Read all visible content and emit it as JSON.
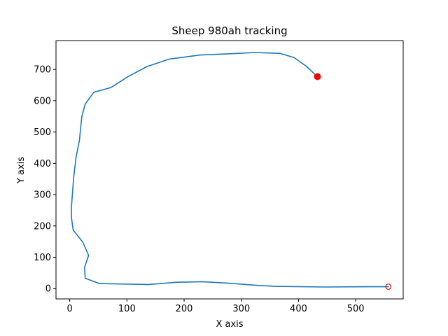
{
  "chart_data": {
    "type": "line",
    "title": "Sheep 980ah tracking",
    "xlabel": "X axis",
    "ylabel": "Y axis",
    "xlim": [
      -24,
      583
    ],
    "ylim": [
      -33,
      792
    ],
    "xticks": [
      0,
      100,
      200,
      300,
      400,
      500
    ],
    "yticks": [
      0,
      100,
      200,
      300,
      400,
      500,
      600,
      700
    ],
    "grid": false,
    "legend": "none",
    "colors": {
      "line": "#1f77b4",
      "end_marker": "#ff0000",
      "start_marker": "#d62728"
    },
    "series": [
      {
        "x": [
          557,
          530,
          445,
          360,
          330,
          280,
          232,
          185,
          138,
          52,
          27,
          26,
          33,
          23,
          6,
          3,
          3,
          5,
          7,
          11,
          17,
          21,
          27,
          42,
          72,
          102,
          135,
          174,
          228,
          280,
          325,
          368,
          392,
          413,
          433
        ],
        "y": [
          6,
          6,
          5,
          7,
          10,
          17,
          22,
          20,
          13,
          16,
          33,
          68,
          106,
          148,
          187,
          227,
          260,
          310,
          357,
          418,
          474,
          548,
          589,
          627,
          642,
          677,
          709,
          733,
          746,
          750,
          754,
          751,
          738,
          711,
          677
        ]
      }
    ],
    "markers": [
      {
        "kind": "start",
        "x": 557,
        "y": 6,
        "style": "hollow"
      },
      {
        "kind": "end",
        "x": 433,
        "y": 677,
        "style": "filled"
      }
    ]
  }
}
